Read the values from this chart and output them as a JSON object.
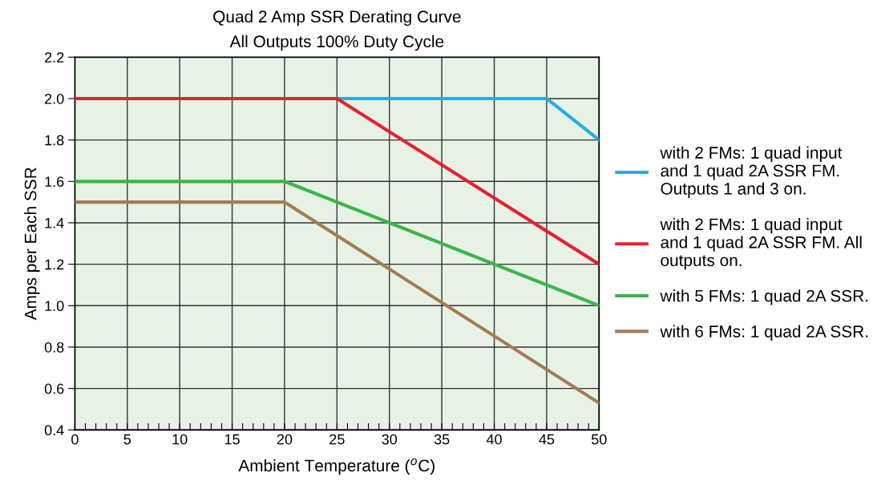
{
  "chart_data": {
    "type": "line",
    "title": "Quad 2 Amp SSR Derating Curve",
    "subtitle": "All Outputs 100% Duty Cycle",
    "xlabel": "Ambient Temperature ($^{o}$C)",
    "ylabel": "Amps per Each SSR",
    "xlim": [
      0,
      50
    ],
    "ylim": [
      0.4,
      2.2
    ],
    "xticks": [
      0,
      {
        "value": 1,
        "label": null
      },
      {
        "value": 2,
        "label": null
      },
      {
        "value": 3,
        "label": null
      },
      {
        "value": 4,
        "label": null
      },
      5,
      {
        "value": 6,
        "label": null
      },
      {
        "value": 7,
        "label": null
      },
      {
        "value": 8,
        "label": null
      },
      {
        "value": 9,
        "label": null
      },
      10,
      {
        "value": 11,
        "label": null
      },
      {
        "value": 12,
        "label": null
      },
      {
        "value": 13,
        "label": null
      },
      {
        "value": 14,
        "label": null
      },
      15,
      {
        "value": 16,
        "label": null
      },
      {
        "value": 17,
        "label": null
      },
      {
        "value": 18,
        "label": null
      },
      {
        "value": 19,
        "label": null
      },
      20,
      {
        "value": 21,
        "label": null
      },
      {
        "value": 22,
        "label": null
      },
      {
        "value": 23,
        "label": null
      },
      {
        "value": 24,
        "label": null
      },
      25,
      {
        "value": 26,
        "label": null
      },
      {
        "value": 27,
        "label": null
      },
      {
        "value": 28,
        "label": null
      },
      {
        "value": 29,
        "label": null
      },
      30,
      {
        "value": 31,
        "label": null
      },
      {
        "value": 32,
        "label": null
      },
      {
        "value": 33,
        "label": null
      },
      {
        "value": 34,
        "label": null
      },
      35,
      {
        "value": 36,
        "label": null
      },
      {
        "value": 37,
        "label": null
      },
      {
        "value": 38,
        "label": null
      },
      {
        "value": 39,
        "label": null
      },
      40,
      {
        "value": 41,
        "label": null
      },
      {
        "value": 42,
        "label": null
      },
      {
        "value": 43,
        "label": null
      },
      {
        "value": 44,
        "label": null
      },
      45,
      {
        "value": 46,
        "label": null
      },
      {
        "value": 47,
        "label": null
      },
      {
        "value": 48,
        "label": null
      },
      {
        "value": 49,
        "label": null
      },
      50
    ],
    "yticks": [
      {
        "value": 0.4,
        "label": "0.4"
      },
      {
        "value": 0.6,
        "label": "0.6"
      },
      {
        "value": 0.8,
        "label": "0.8"
      },
      {
        "value": 1.0,
        "label": "1.0"
      },
      {
        "value": 1.2,
        "label": "1.2"
      },
      {
        "value": 1.4,
        "label": "1.4"
      },
      {
        "value": 1.6,
        "label": "1.6"
      },
      {
        "value": 1.8,
        "label": "1.8"
      },
      {
        "value": 2.0,
        "label": "2.0"
      },
      {
        "value": 2.2,
        "label": "2.2"
      }
    ],
    "grid": true,
    "legend": "right",
    "marker": "none",
    "line_style": "solid",
    "series": [
      {
        "name": "with 2 FMs: 1 quad input and 1 quad 2A SSR FM. Outputs 1 and 3 on.",
        "color": "#29abe2",
        "x": [
          25,
          45,
          50
        ],
        "values": [
          2.0,
          2.0,
          1.8
        ]
      },
      {
        "name": "with 2 FMs: 1 quad input and 1 quad 2A SSR FM. All outputs on.",
        "color": "#e8202f",
        "x": [
          0,
          25,
          50
        ],
        "values": [
          2.0,
          2.0,
          1.2
        ]
      },
      {
        "name": "with 5 FMs: 1 quad 2A SSR.",
        "color": "#3cb54a",
        "x": [
          0,
          20,
          50
        ],
        "values": [
          1.6,
          1.6,
          1.0
        ]
      },
      {
        "name": "with 6 FMs: 1 quad 2A SSR.",
        "color": "#a67c52",
        "x": [
          0,
          20,
          50
        ],
        "values": [
          1.5,
          1.5,
          0.53
        ]
      }
    ]
  }
}
